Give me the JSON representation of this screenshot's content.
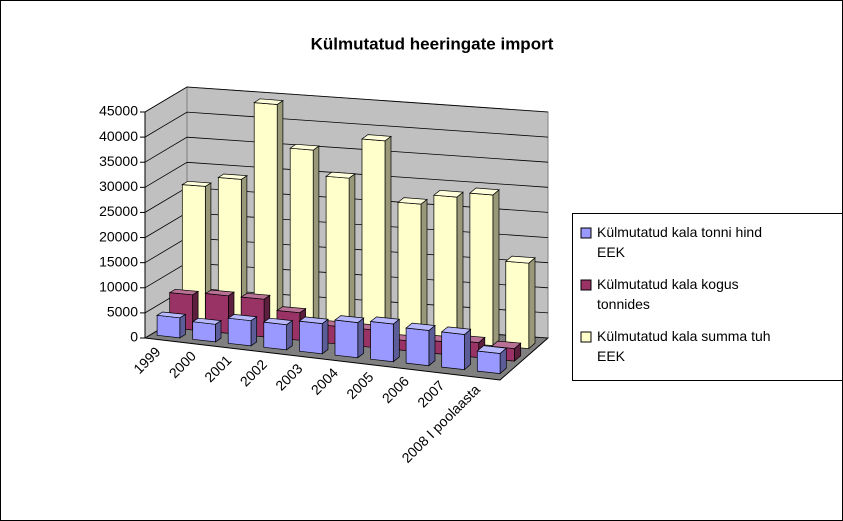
{
  "chart_data": {
    "type": "bar3d",
    "title": "Külmutatud heeringate import",
    "categories": [
      "1999",
      "2000",
      "2001",
      "2002",
      "2003",
      "2004",
      "2005",
      "2006",
      "2007",
      "2008 I poolaasta"
    ],
    "series": [
      {
        "name": "Külmutatud kala  tonni hind EEK",
        "color": "#9999ff",
        "values": [
          4000,
          3500,
          5000,
          5000,
          6000,
          7000,
          7500,
          7000,
          7000,
          4000
        ]
      },
      {
        "name": "Külmutatud kala  kogus tonnides",
        "color": "#993366",
        "values": [
          7000,
          7500,
          7500,
          5500,
          3500,
          3500,
          2000,
          2500,
          3000,
          2500
        ]
      },
      {
        "name": "Külmutatud kala  summa tuh EEK",
        "color": "#ffffcc",
        "values": [
          27000,
          29000,
          44500,
          36000,
          31000,
          39000,
          27000,
          29000,
          30000,
          17000
        ]
      }
    ],
    "ylim": [
      0,
      45000
    ],
    "yticks": [
      0,
      5000,
      10000,
      15000,
      20000,
      25000,
      30000,
      35000,
      40000,
      45000
    ],
    "grid": true
  }
}
